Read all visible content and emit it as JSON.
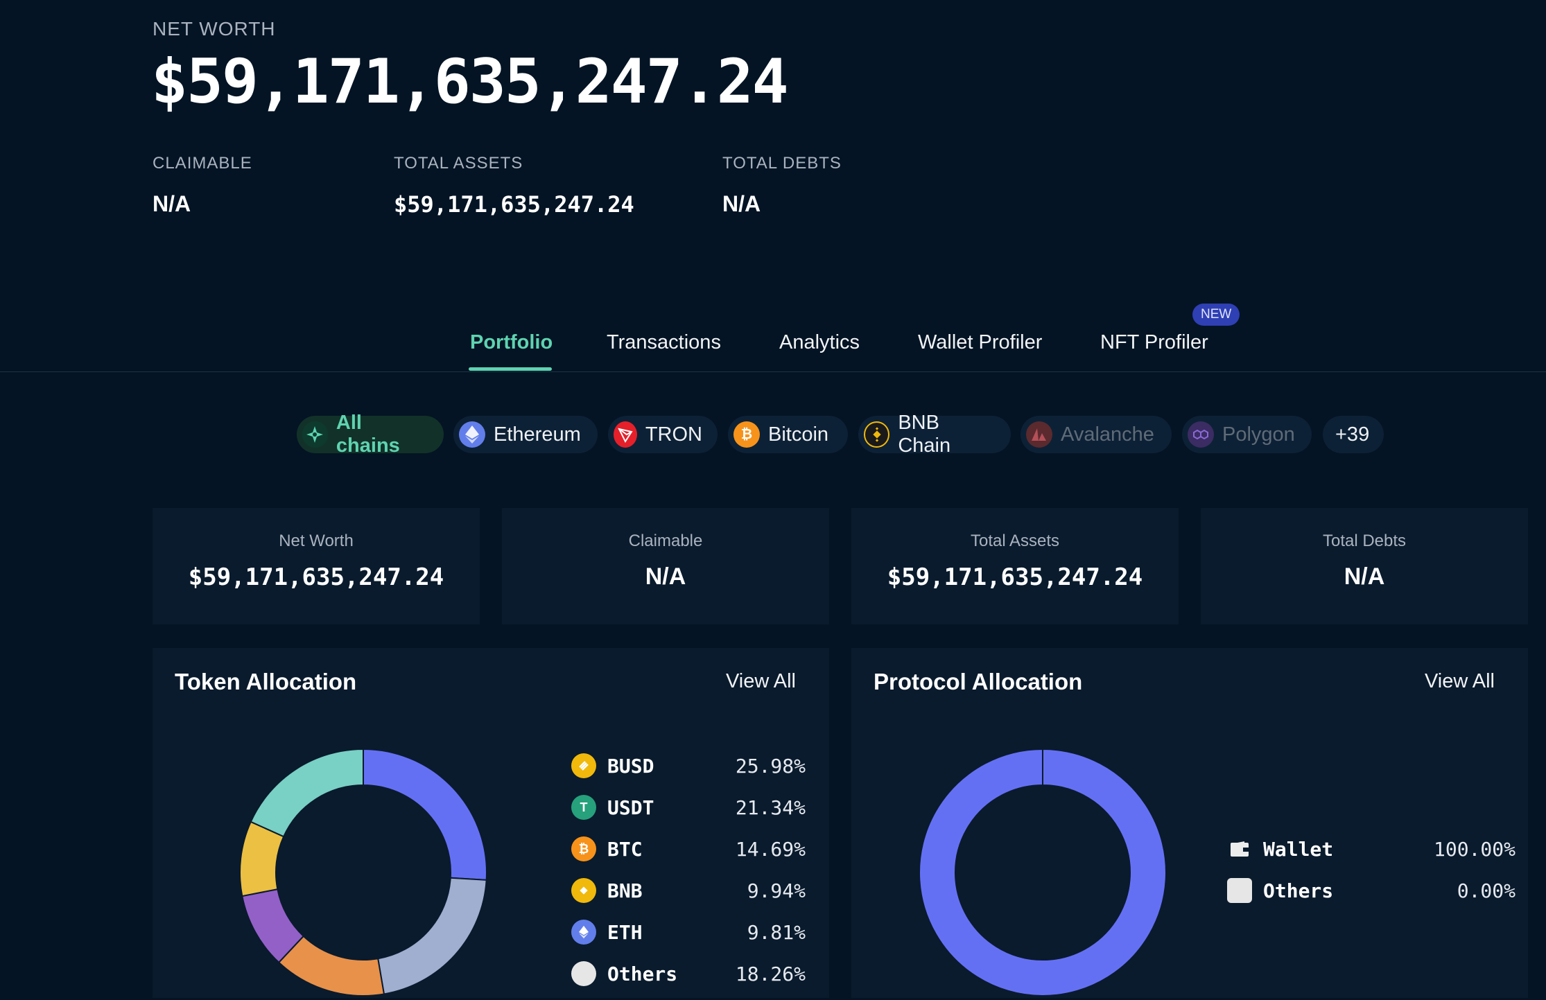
{
  "header": {
    "net_worth_label": "NET WORTH",
    "net_worth_value": "$59,171,635,247.24",
    "claimable_label": "CLAIMABLE",
    "claimable_value": "N/A",
    "total_assets_label": "TOTAL ASSETS",
    "total_assets_value": "$59,171,635,247.24",
    "total_debts_label": "TOTAL DEBTS",
    "total_debts_value": "N/A"
  },
  "tabs": [
    {
      "label": "Portfolio",
      "active": true
    },
    {
      "label": "Transactions"
    },
    {
      "label": "Analytics"
    },
    {
      "label": "Wallet Profiler"
    },
    {
      "label": "NFT Profiler",
      "badge": "NEW"
    }
  ],
  "chains": [
    {
      "label": "All chains",
      "icon": "all-chains-icon",
      "active": true
    },
    {
      "label": "Ethereum",
      "icon": "ethereum-icon"
    },
    {
      "label": "TRON",
      "icon": "tron-icon"
    },
    {
      "label": "Bitcoin",
      "icon": "bitcoin-icon"
    },
    {
      "label": "BNB Chain",
      "icon": "bnb-icon"
    },
    {
      "label": "Avalanche",
      "icon": "avalanche-icon",
      "disabled": true
    },
    {
      "label": "Polygon",
      "icon": "polygon-icon",
      "disabled": true
    },
    {
      "label": "+39"
    }
  ],
  "cards": [
    {
      "label": "Net Worth",
      "value": "$59,171,635,247.24"
    },
    {
      "label": "Claimable",
      "value": "N/A"
    },
    {
      "label": "Total Assets",
      "value": "$59,171,635,247.24"
    },
    {
      "label": "Total Debts",
      "value": "N/A"
    }
  ],
  "token_allocation": {
    "title": "Token Allocation",
    "link": "View All",
    "items": [
      {
        "name": "BUSD",
        "pct": "25.98%",
        "value": 25.98,
        "color": "#6470f4",
        "icon_color": "#f0b90b"
      },
      {
        "name": "USDT",
        "pct": "21.34%",
        "value": 21.34,
        "color": "#a0aed0",
        "icon_color": "#26a17b"
      },
      {
        "name": "BTC",
        "pct": "14.69%",
        "value": 14.69,
        "color": "#e8914a",
        "icon_color": "#f7931a"
      },
      {
        "name": "BNB",
        "pct": "9.94%",
        "value": 9.94,
        "color": "#9360c8",
        "icon_color": "#f0b90b"
      },
      {
        "name": "ETH",
        "pct": "9.81%",
        "value": 9.81,
        "color": "#ecc042",
        "icon_color": "#627eea"
      },
      {
        "name": "Others",
        "pct": "18.26%",
        "value": 18.26,
        "color": "#79d0c5",
        "icon_color": "#e6e6e6"
      }
    ]
  },
  "protocol_allocation": {
    "title": "Protocol Allocation",
    "link": "View All",
    "items": [
      {
        "name": "Wallet",
        "pct": "100.00%",
        "value": 100,
        "color": "#6470f4",
        "icon": "wallet-icon"
      },
      {
        "name": "Others",
        "pct": "0.00%",
        "value": 0,
        "color": "#e6e6e6",
        "icon": "others-icon"
      }
    ]
  }
}
